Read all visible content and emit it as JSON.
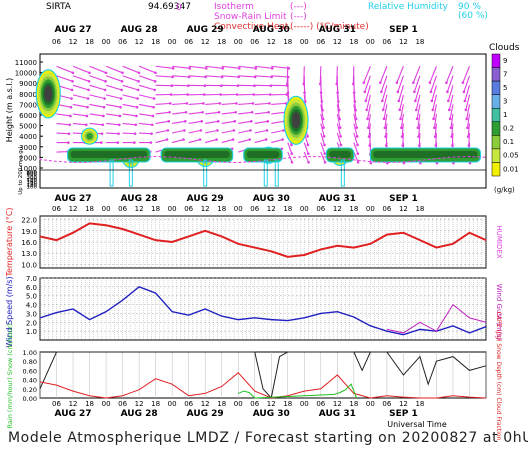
{
  "header": {
    "station": "SIRTA",
    "coords": "94.69347",
    "isotherm_zero": "0",
    "legend_left": [
      {
        "label": "Isotherm",
        "sym": "(---)",
        "color": "#e040e0"
      },
      {
        "label": "Snow-Rain Limit",
        "sym": "(---)",
        "color": "#e040e0"
      },
      {
        "label": "Convective Heat.",
        "sym": "(-----) (°C/minute)",
        "color": "#e03030"
      }
    ],
    "legend_right": [
      {
        "label": "Relative Humidity",
        "sym": "90 %",
        "color": "#20d0e8"
      },
      {
        "sym": "(60 %)",
        "color": "#20d0e8"
      }
    ]
  },
  "day_labels": [
    "AUG 27",
    "AUG 28",
    "AUG 29",
    "AUG 30",
    "AUG 31",
    "SEP  1"
  ],
  "hour_labels": [
    "06",
    "12",
    "18",
    "00",
    "06",
    "12",
    "18",
    "00",
    "06",
    "12",
    "18",
    "00",
    "06",
    "12",
    "18",
    "00",
    "06",
    "12",
    "18",
    "00",
    "06",
    "12",
    "18"
  ],
  "colors": {
    "temperature": "#e02020",
    "humidex": "#e040e0",
    "wind": "#2020c0",
    "gust": "#c020c0",
    "rain": "#20c020",
    "cape": "#e02020",
    "cloud_black": "#222222",
    "cyan": "#20d0e8",
    "magenta": "#e040e0"
  },
  "footer": "Modele Atmospherique LMDZ / Forecast starting on 20200827 at 0hUT",
  "chart_data": [
    {
      "type": "heatmap",
      "title": "Clouds",
      "ylabel": "Height (m a.s.l.)",
      "ylabel2": "Up to 200 m a.g.l.",
      "yticks_upper": [
        11000,
        10000,
        9000,
        8000,
        7000,
        6000,
        5000,
        4000,
        3000,
        2000,
        1000
      ],
      "yticks_lower": [
        800,
        600,
        400,
        300,
        200,
        180,
        160,
        140,
        120,
        100,
        80,
        60,
        40,
        20,
        0
      ],
      "colorbar": {
        "label": "(g/kg)",
        "ticks": [
          "9",
          "7",
          "5",
          "3",
          "1",
          "0.2",
          "0.1",
          "0.05",
          "0.01"
        ]
      },
      "cloud_cores": [
        {
          "t": 3,
          "h": 8000,
          "v": 0.2
        },
        {
          "t": 18,
          "h": 4000,
          "v": 0.1
        },
        {
          "t": 33,
          "h": 1800,
          "v": 0.1
        },
        {
          "t": 60,
          "h": 1900,
          "v": 0.1
        },
        {
          "t": 83,
          "h": 2200,
          "v": 0.1
        },
        {
          "t": 93,
          "h": 5500,
          "v": 0.2
        },
        {
          "t": 109,
          "h": 2000,
          "v": 0.1
        }
      ]
    },
    {
      "type": "line",
      "ylabel": "Temperature (°C)",
      "ylabel2": "HUMIDEX",
      "yticks": [
        22.0,
        19.0,
        16.0,
        13.0,
        10.0
      ],
      "ylim": [
        9,
        23
      ],
      "series": [
        {
          "name": "Temperature",
          "t": [
            0,
            6,
            12,
            18,
            24,
            30,
            36,
            42,
            48,
            54,
            60,
            66,
            72,
            78,
            84,
            90,
            96,
            102,
            108,
            114,
            120,
            126,
            132,
            138,
            144,
            150,
            156,
            162
          ],
          "values": [
            17.5,
            16.5,
            18.5,
            21,
            20.5,
            19.5,
            18,
            16.5,
            16,
            17.5,
            19,
            17.5,
            15.5,
            14.5,
            13.5,
            12,
            12.5,
            14,
            15,
            14.5,
            15.5,
            18,
            18.5,
            16.5,
            14.5,
            15.5,
            18.5,
            16.5
          ]
        }
      ]
    },
    {
      "type": "line",
      "ylabel": "Wind Speed (m/s)",
      "ylabel2": "Wind Gust (m/s)",
      "yticks": [
        7.0,
        6.0,
        5.0,
        4.0,
        3.0,
        2.0,
        1.0
      ],
      "ylim": [
        0,
        7
      ],
      "series": [
        {
          "name": "Wind",
          "t": [
            0,
            6,
            12,
            18,
            24,
            30,
            36,
            42,
            48,
            54,
            60,
            66,
            72,
            78,
            84,
            90,
            96,
            102,
            108,
            114,
            120,
            126,
            132,
            138,
            144,
            150,
            156,
            162
          ],
          "values": [
            2.5,
            3.1,
            3.5,
            2.3,
            3.2,
            4.5,
            6.0,
            5.3,
            3.2,
            2.8,
            3.5,
            2.7,
            2.3,
            2.5,
            2.3,
            2.2,
            2.5,
            3.0,
            3.2,
            2.6,
            1.6,
            1.0,
            0.6,
            1.2,
            1.0,
            1.6,
            0.8,
            1.5
          ]
        },
        {
          "name": "Gust",
          "t": [
            126,
            132,
            138,
            144,
            150,
            156,
            162
          ],
          "values": [
            1.2,
            0.8,
            2.0,
            1.0,
            4.0,
            2.5,
            2.0
          ]
        }
      ]
    },
    {
      "type": "line",
      "ylabel": "Rain (mm/hour) Snow (cm/hour)",
      "ylabel2": "CAPE (J/g) Snow Depth (cm) Cloud Fraction",
      "yticks": [
        1.0,
        0.8,
        0.6,
        0.4,
        0.2,
        0.0
      ],
      "ylim": [
        0,
        1
      ],
      "series": [
        {
          "name": "Cloud fraction",
          "t": [
            0,
            6,
            12,
            18,
            24,
            30,
            36,
            42,
            48,
            54,
            60,
            66,
            72,
            78,
            81,
            84,
            87,
            90,
            96,
            102,
            108,
            114,
            117,
            120,
            126,
            132,
            138,
            141,
            144,
            150,
            156,
            162
          ],
          "values": [
            0.2,
            1,
            1,
            1,
            1,
            1,
            1,
            1,
            1,
            1,
            1,
            1,
            1,
            1,
            0.2,
            0,
            0.9,
            1,
            1,
            1,
            1,
            1,
            0.6,
            1,
            1,
            0.5,
            0.9,
            0.3,
            0.8,
            0.9,
            0.6,
            0.7
          ]
        },
        {
          "name": "CAPE",
          "t": [
            0,
            6,
            12,
            18,
            24,
            30,
            36,
            42,
            48,
            54,
            60,
            66,
            72,
            78,
            84,
            90,
            96,
            102,
            108,
            114,
            120,
            126,
            132,
            138,
            144,
            150,
            156,
            162
          ],
          "values": [
            0.35,
            0.28,
            0.15,
            0.05,
            0,
            0.05,
            0.18,
            0.42,
            0.3,
            0.05,
            0.1,
            0.25,
            0.55,
            0.15,
            0,
            0.05,
            0.15,
            0.2,
            0.5,
            0.1,
            0,
            0.05,
            0.02,
            0,
            0,
            0.05,
            0.02,
            0
          ]
        },
        {
          "name": "Rain",
          "t": [
            72,
            74,
            76,
            78,
            107,
            109,
            111,
            113,
            115
          ],
          "values": [
            0.1,
            0.15,
            0.12,
            0,
            0.08,
            0.12,
            0.18,
            0.3,
            0
          ]
        }
      ],
      "xlabel": "Universal Time"
    }
  ]
}
